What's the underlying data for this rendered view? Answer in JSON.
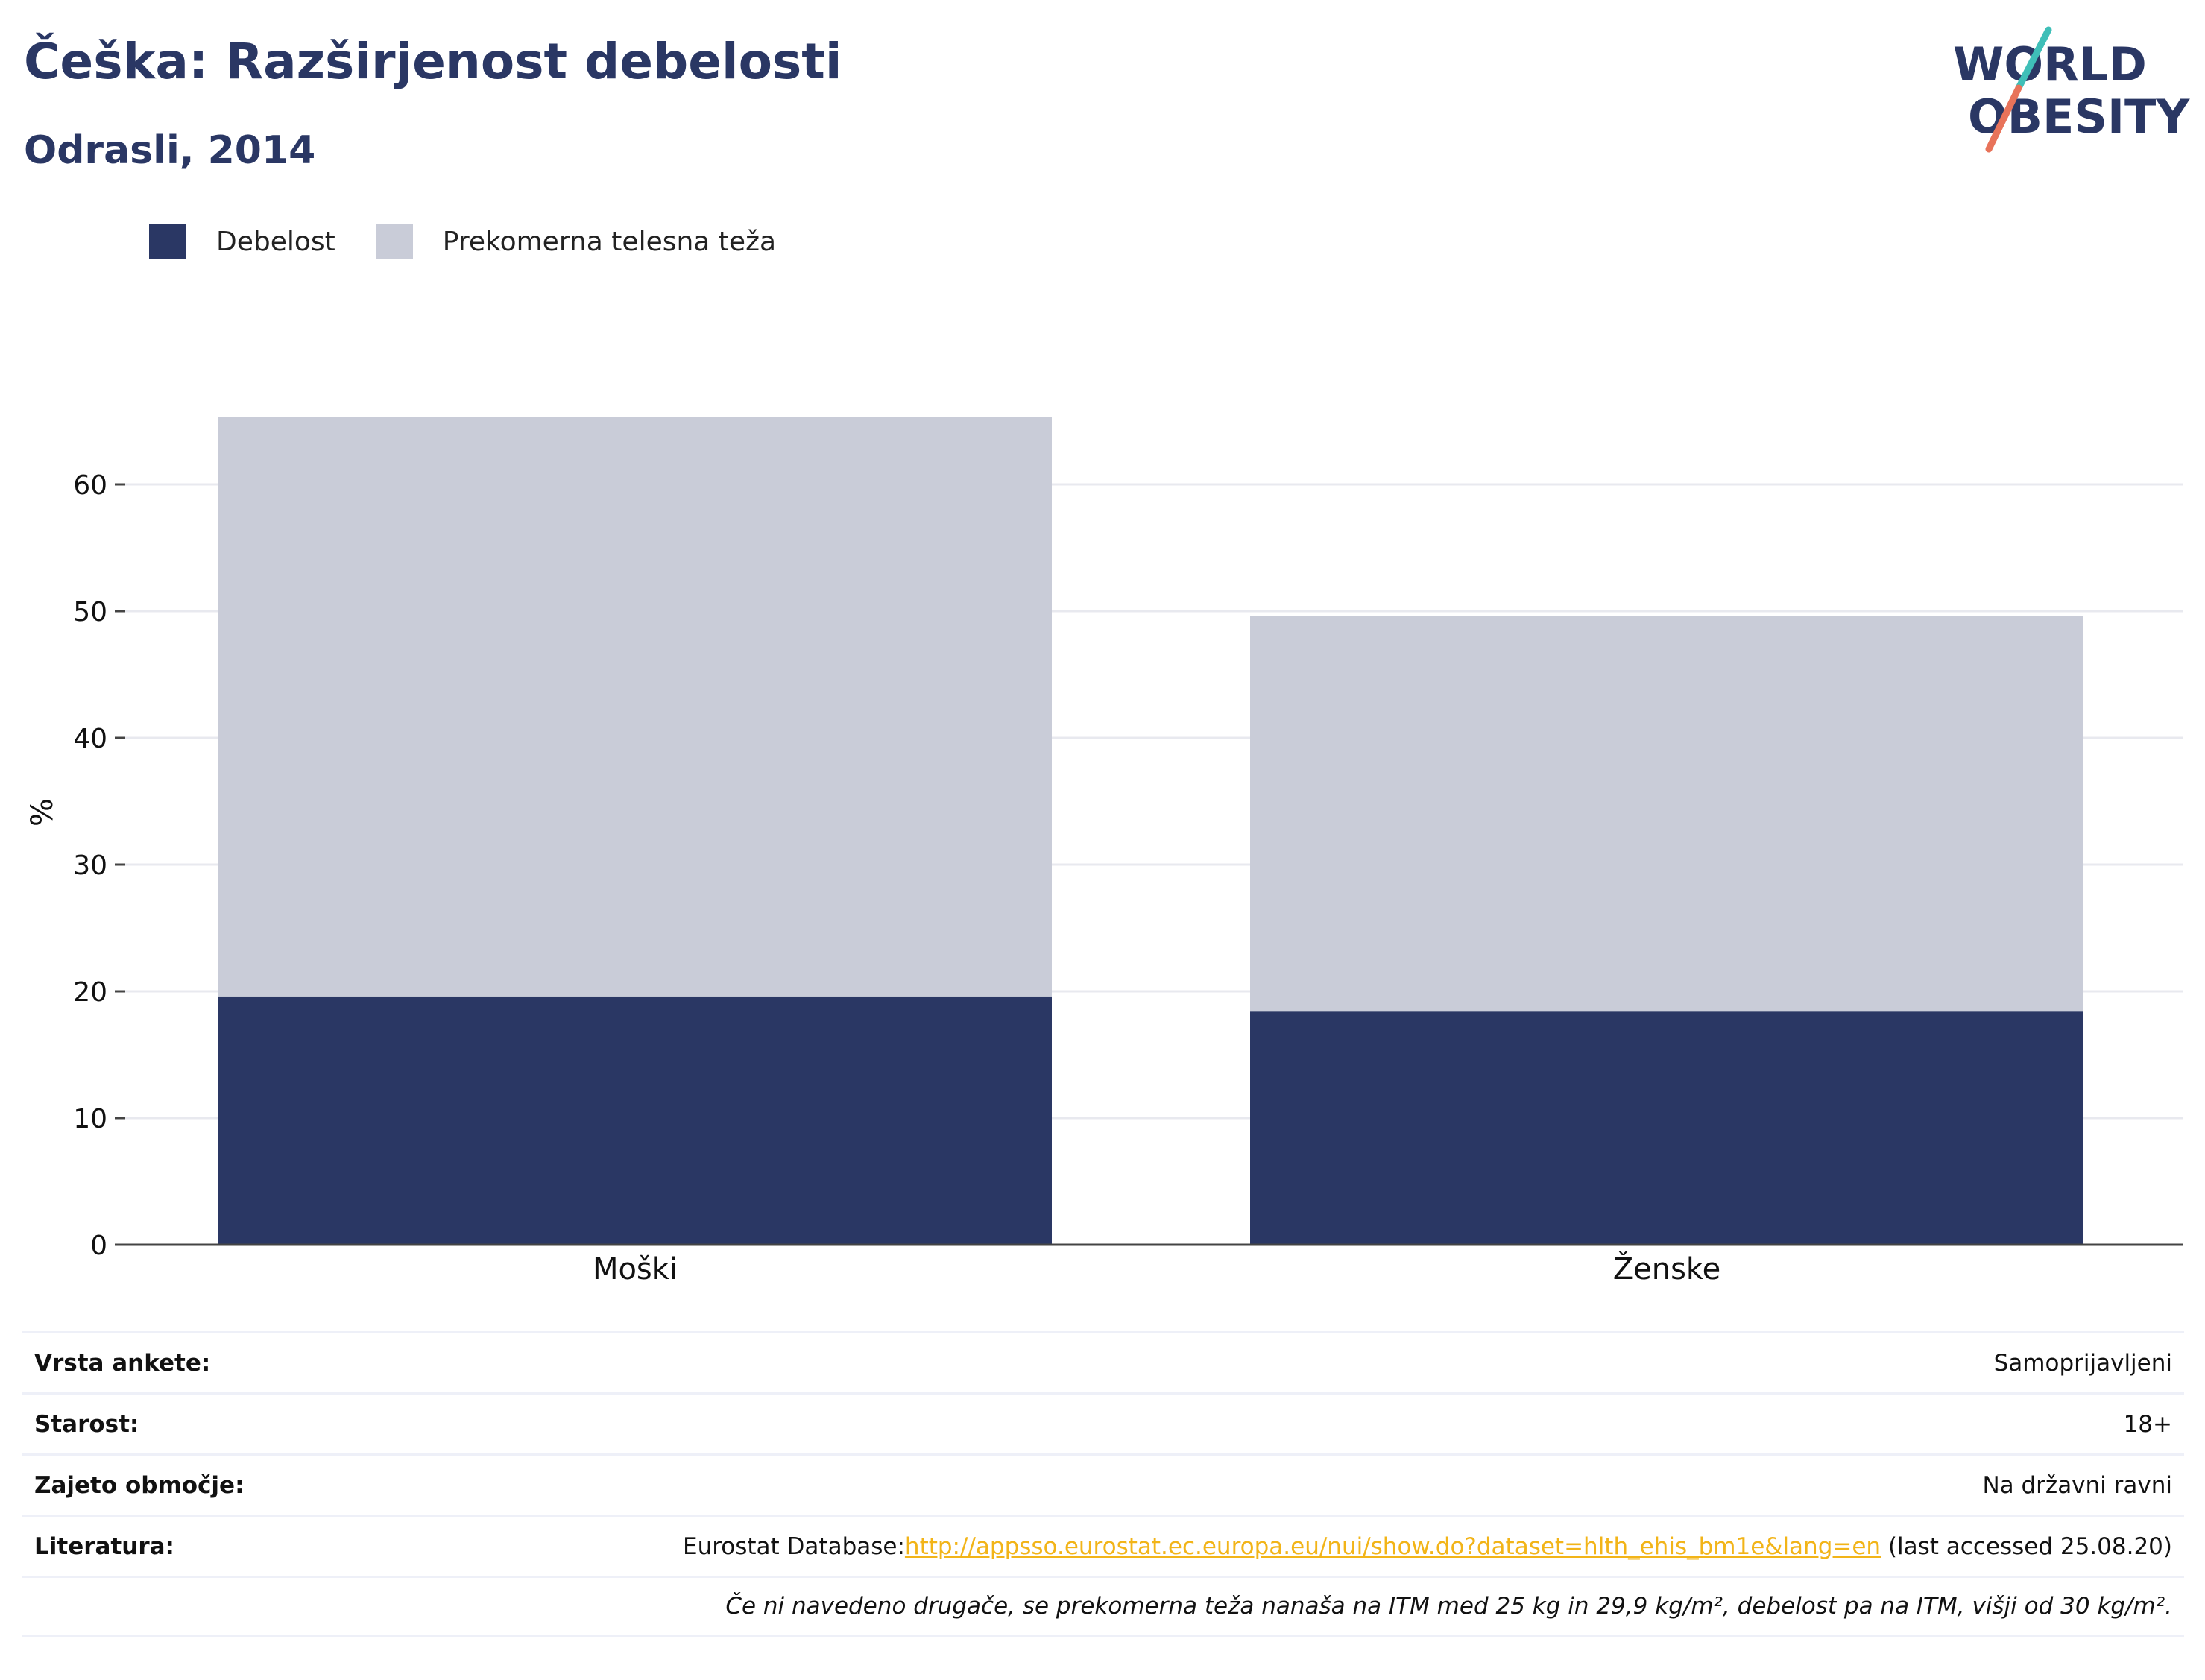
{
  "header": {
    "title": "Češka: Razširjenost debelosti",
    "subtitle": "Odrasli, 2014"
  },
  "logo": {
    "line1": "WORLD",
    "line2": "OBESITY",
    "icon": "world-obesity-logo"
  },
  "colors": {
    "obesity": "#2a3764",
    "overweight": "#c9ccd8",
    "accent_teal": "#3fbfb8",
    "accent_coral": "#e8735a",
    "link": "#f2b418"
  },
  "chart_data": {
    "type": "bar",
    "stacked": true,
    "categories": [
      "Moški",
      "Ženske"
    ],
    "series": [
      {
        "name": "Debelost",
        "values": [
          19.6,
          18.4
        ]
      },
      {
        "name": "Prekomerna telesna teža",
        "values": [
          45.7,
          31.2
        ]
      }
    ],
    "ylabel": "%",
    "ylim": [
      0,
      65.3
    ],
    "yticks": [
      0,
      10,
      20,
      30,
      40,
      50,
      60
    ],
    "grid": true,
    "legend": "top-left"
  },
  "info": {
    "survey_label": "Vrsta ankete:",
    "survey_value": "Samoprijavljeni",
    "age_label": "Starost:",
    "age_value": "18+",
    "coverage_label": "Zajeto območje:",
    "coverage_value": "Na državni ravni",
    "ref_label": "Literatura:",
    "ref_prefix": "Eurostat Database:",
    "ref_link": "http://appsso.eurostat.ec.europa.eu/nui/show.do?dataset=hlth_ehis_bm1e&lang=en",
    "ref_suffix": " (last accessed 25.08.20)",
    "note": "Če ni navedeno drugače, se prekomerna teža nanaša na ITM med 25 kg in 29,9 kg/m², debelost pa na ITM, višji od 30 kg/m²."
  }
}
